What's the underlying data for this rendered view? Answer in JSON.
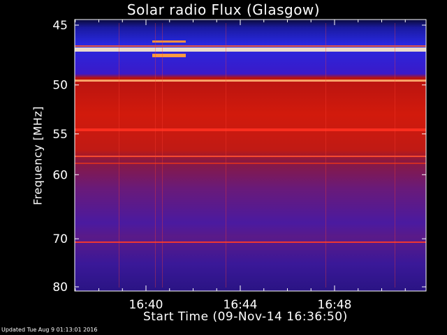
{
  "chart_data": {
    "type": "heatmap",
    "title": "Solar radio Flux (Glasgow)",
    "ylabel": "Frequency [MHz]",
    "xlabel": "Start Time (09-Nov-14 16:36:50)",
    "y_ticks": [
      "45",
      "50",
      "55",
      "60",
      "70",
      "80"
    ],
    "x_ticks": [
      "16:40",
      "16:44",
      "16:48"
    ],
    "grid": false,
    "colors": {
      "background": "#000000",
      "axes": "#ffffff",
      "low": "#10104a",
      "mid": "#3a1fd8",
      "high": "#d41808",
      "peak": "#fff4c0"
    }
  },
  "footer": {
    "updated": "Updated Tue Aug  9 01:13:01 2016"
  }
}
